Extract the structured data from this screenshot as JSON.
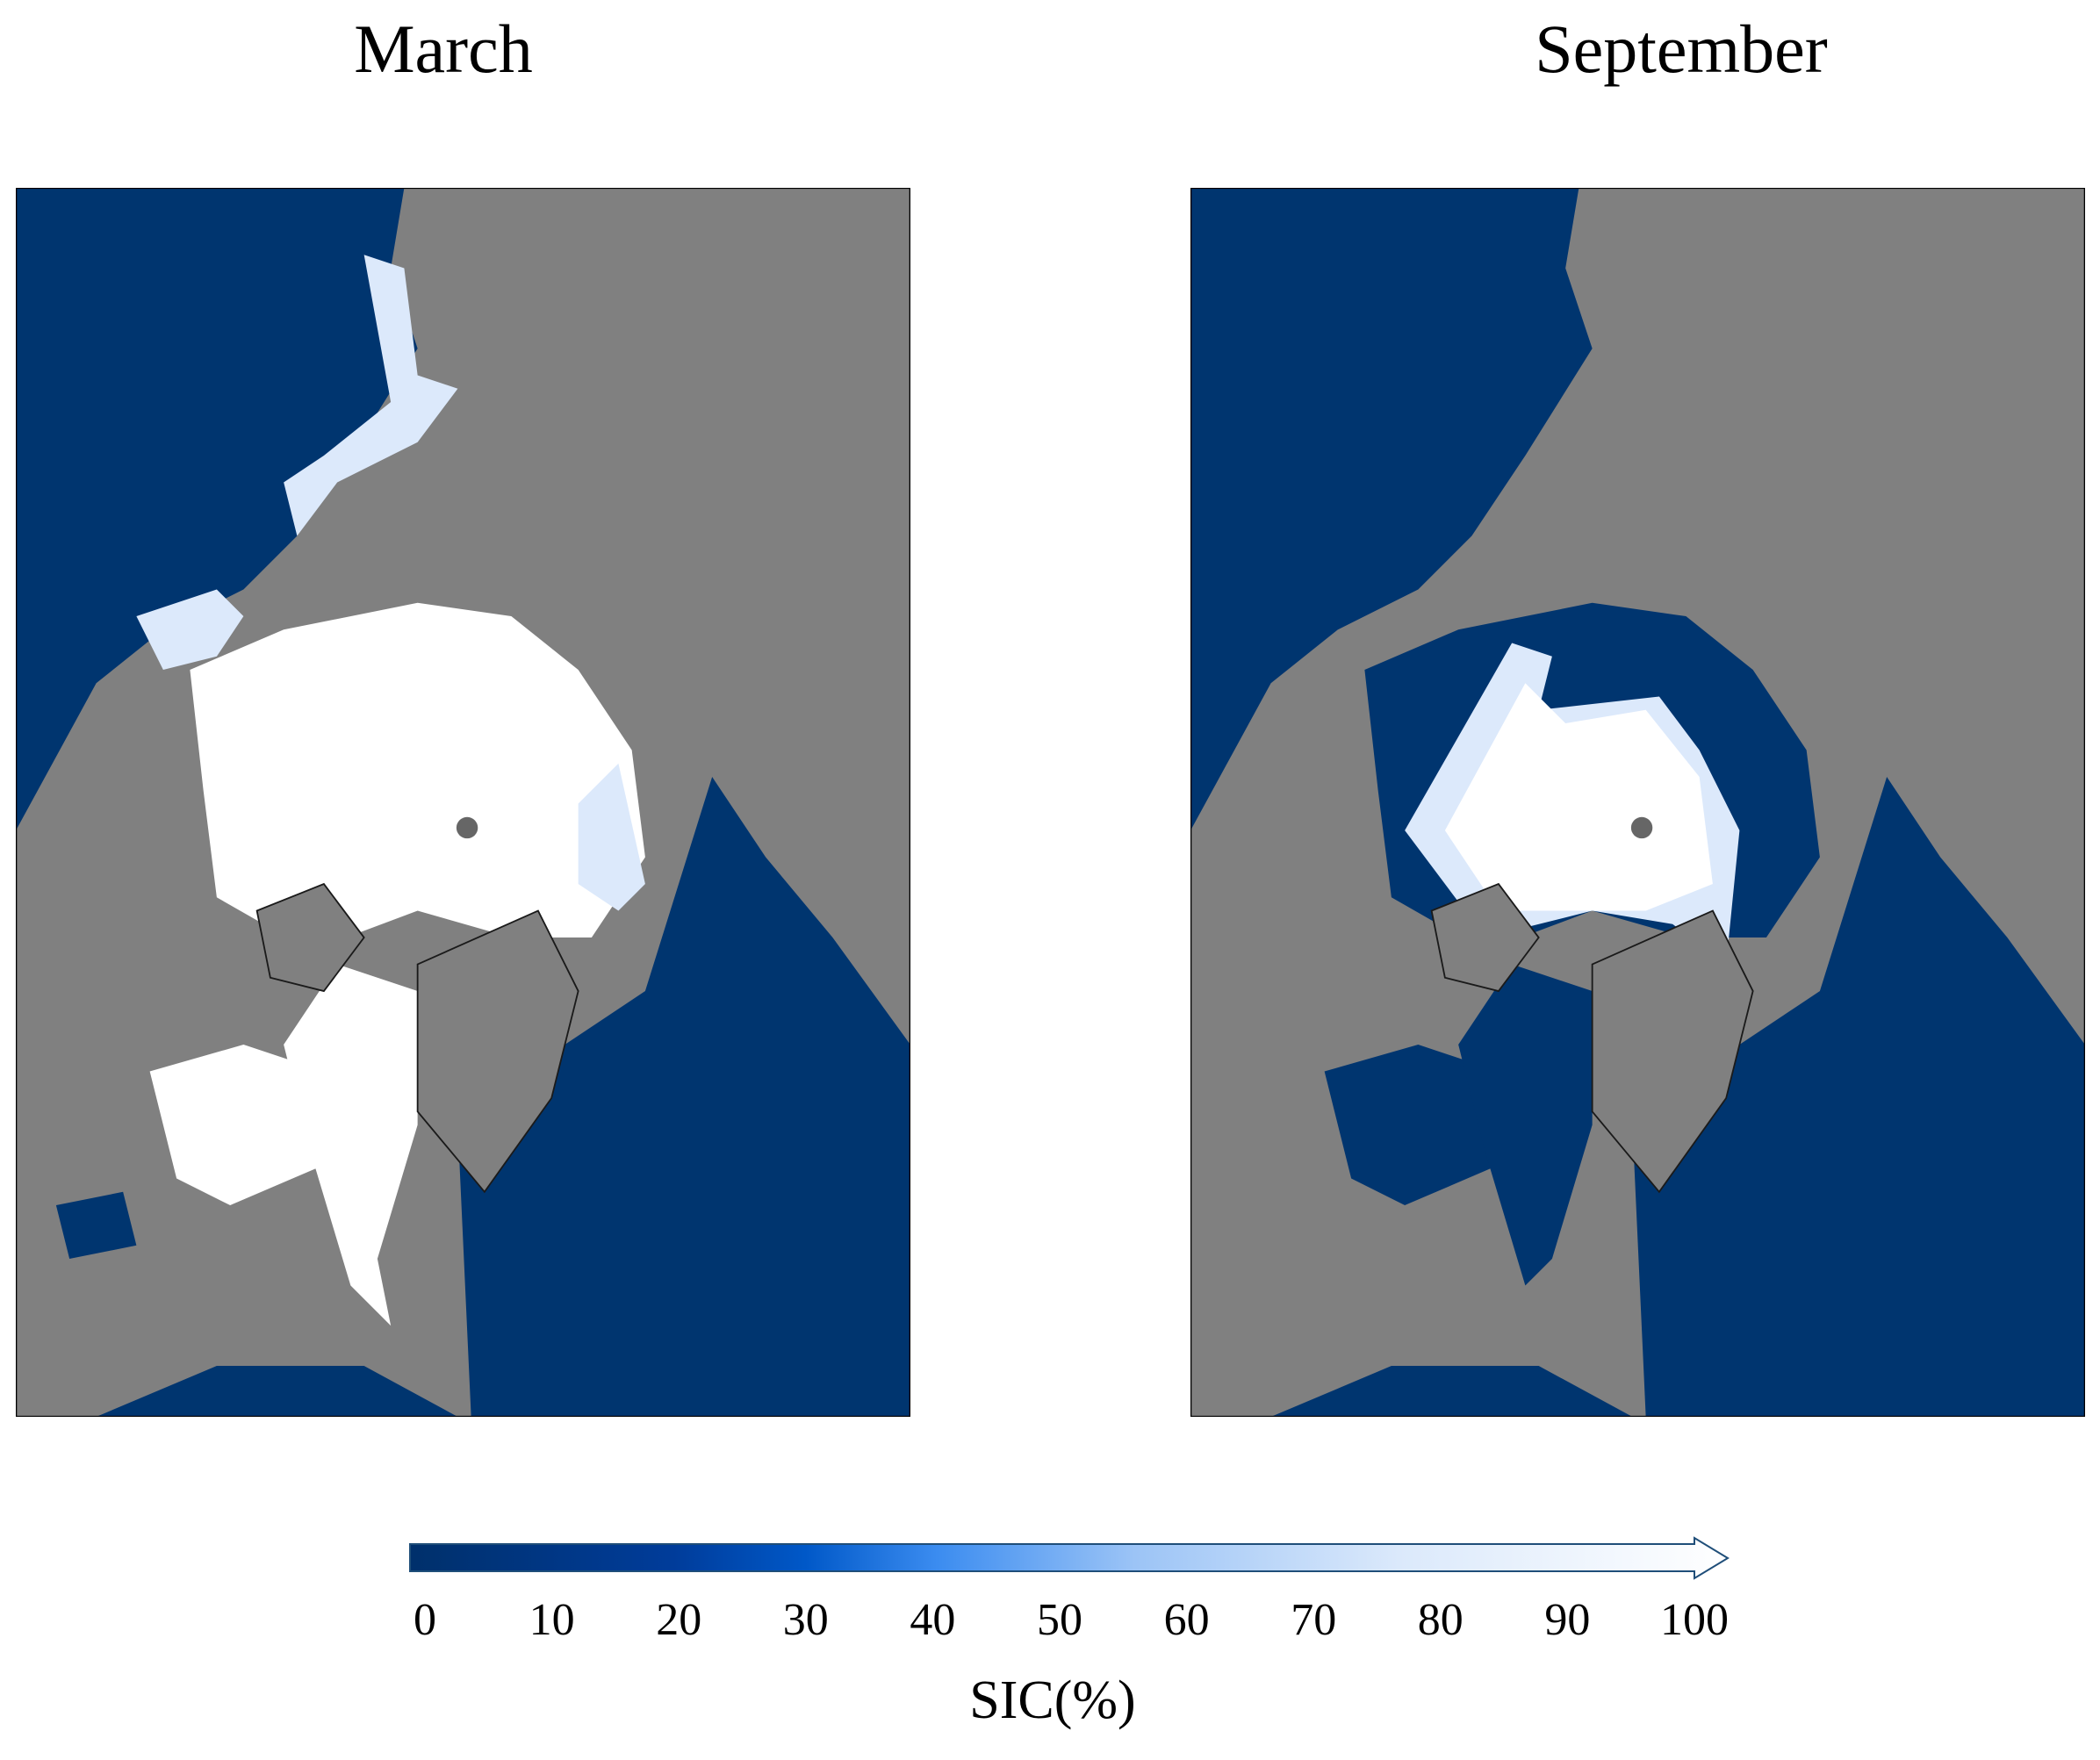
{
  "panels": [
    {
      "title": "March"
    },
    {
      "title": "September"
    }
  ],
  "colorbar": {
    "lim": [
      0,
      100
    ],
    "ticks": [
      0,
      10,
      20,
      30,
      40,
      50,
      60,
      70,
      80,
      90,
      100
    ],
    "label": "SIC(%)"
  }
}
